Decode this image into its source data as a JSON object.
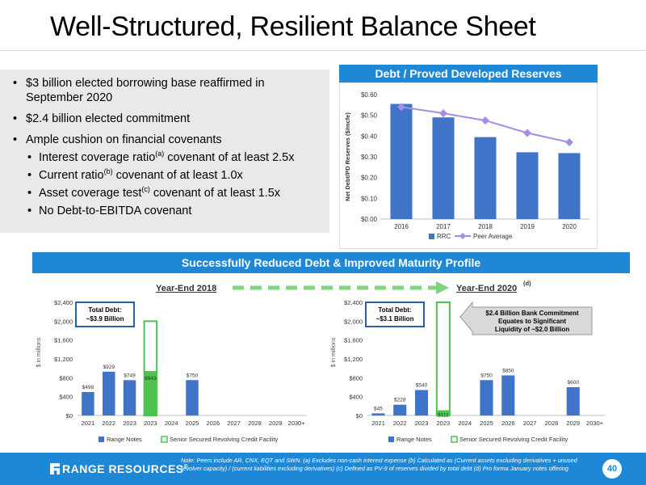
{
  "title": "Well-Structured, Resilient Balance Sheet",
  "bullets": {
    "b1": "$3 billion elected borrowing base reaffirmed in September 2020",
    "b2": "$2.4 billion elected commitment",
    "b3": "Ample cushion on financial covenants",
    "s1_pre": "Interest coverage ratio",
    "s1_sup": "(a)",
    "s1_post": " covenant of at least 2.5x",
    "s2_pre": "Current ratio",
    "s2_sup": "(b)",
    "s2_post": " covenant of at least 1.0x",
    "s3_pre": "Asset coverage test",
    "s3_sup": "(c)",
    "s3_post": " covenant of at least 1.5x",
    "s4": "No Debt-to-EBITDA covenant"
  },
  "banners": {
    "top": "Debt / Proved Developed Reserves",
    "middle": "Successfully Reduced Debt & Improved Maturity Profile"
  },
  "arrow_labels": {
    "left": "Year-End 2018",
    "right": "Year-End 2020",
    "right_sup": "(d)"
  },
  "callouts": {
    "left_total": "Total Debt:",
    "left_value": "~$3.9 Billion",
    "right_total": "Total Debt:",
    "right_value": "~$3.1 Billion",
    "bank_line1": "$2.4 Billion Bank Commitment",
    "bank_line2": "Equates to Significant",
    "bank_line3": "Liquidity of ~$2.0 Billion"
  },
  "colors": {
    "brand_blue": "#1e88d6",
    "bar_blue": "#3f74c9",
    "peer_purple": "#a78be6",
    "credit_green": "#4fc24f",
    "arrow_green": "#7ed47e",
    "callout_border": "#2a5fa8"
  },
  "chart_data": [
    {
      "type": "bar",
      "title": "Debt / Proved Developed Reserves",
      "categories": [
        "2016",
        "2017",
        "2018",
        "2019",
        "2020"
      ],
      "series": [
        {
          "name": "RRC",
          "kind": "bar",
          "values": [
            0.555,
            0.49,
            0.395,
            0.322,
            0.318
          ]
        },
        {
          "name": "Peer Average",
          "kind": "line",
          "values": [
            0.54,
            0.51,
            0.475,
            0.415,
            0.37
          ]
        }
      ],
      "ylabel": "Net Debt/PD Reserves ($/mcfe)",
      "ylim": [
        0,
        0.6
      ],
      "yticks": [
        "$0.00",
        "$0.10",
        "$0.20",
        "$0.30",
        "$0.40",
        "$0.50",
        "$0.60"
      ],
      "grid": false,
      "legend": "bottom"
    },
    {
      "type": "bar",
      "title": "Year-End 2018",
      "categories": [
        "2021",
        "2022",
        "2023",
        "2023",
        "2024",
        "2025",
        "2026",
        "2027",
        "2028",
        "2029",
        "2030+"
      ],
      "series": [
        {
          "name": "Range Notes",
          "values": [
            498,
            929,
            749,
            0,
            0,
            750,
            0,
            0,
            0,
            0,
            0
          ]
        },
        {
          "name": "Senior Secured Revolving Credit Facility",
          "values": [
            0,
            0,
            0,
            943,
            0,
            0,
            0,
            0,
            0,
            0,
            0
          ]
        }
      ],
      "labels": [
        "$498",
        "$929",
        "$749",
        "$943",
        "",
        "$750",
        "",
        "",
        "",
        "",
        ""
      ],
      "facility_capacity": 2000,
      "ylabel": "$ in millions",
      "ylim": [
        0,
        2400
      ],
      "yticks": [
        "$0",
        "$400",
        "$800",
        "$1,200",
        "$1,600",
        "$2,000",
        "$2,400"
      ],
      "legend": "bottom"
    },
    {
      "type": "bar",
      "title": "Year-End 2020",
      "categories": [
        "2021",
        "2022",
        "2023",
        "2023",
        "2024",
        "2025",
        "2026",
        "2027",
        "2028",
        "2029",
        "2030+"
      ],
      "series": [
        {
          "name": "Range Notes",
          "values": [
            45,
            228,
            540,
            0,
            0,
            750,
            850,
            0,
            0,
            600,
            0
          ]
        },
        {
          "name": "Senior Secured Revolving Credit Facility",
          "values": [
            0,
            0,
            0,
            111,
            0,
            0,
            0,
            0,
            0,
            0,
            0
          ]
        }
      ],
      "labels": [
        "$45",
        "$228",
        "$540",
        "$111",
        "",
        "$750",
        "$850",
        "",
        "",
        "$600",
        ""
      ],
      "facility_capacity": 2400,
      "ylabel": "$ in millions",
      "ylim": [
        0,
        2400
      ],
      "yticks": [
        "$0",
        "$400",
        "$800",
        "$1,200",
        "$1,600",
        "$2,000",
        "$2,400"
      ],
      "legend": "bottom"
    }
  ],
  "footer": {
    "logo": "RANGE RESOURCES",
    "logo_mark": "®",
    "note": "Note: Peers include AR, CNX, EQT and SWN. (a) Excludes non-cash interest expense (b) Calculated as (Current assets excluding derivatives + unused revolver capacity) / (current liabilities excluding derivatives) (c) Defined as PV-9 of reserves divided by total debt (d) Pro forma January notes offering",
    "page": "40"
  }
}
